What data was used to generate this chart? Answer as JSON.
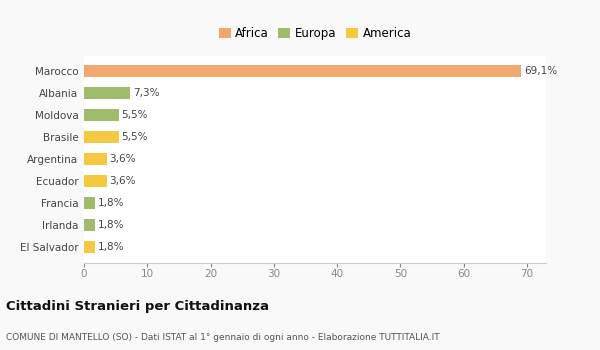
{
  "categories": [
    "El Salvador",
    "Irlanda",
    "Francia",
    "Ecuador",
    "Argentina",
    "Brasile",
    "Moldova",
    "Albania",
    "Marocco"
  ],
  "values": [
    1.8,
    1.8,
    1.8,
    3.6,
    3.6,
    5.5,
    5.5,
    7.3,
    69.1
  ],
  "labels": [
    "1,8%",
    "1,8%",
    "1,8%",
    "3,6%",
    "3,6%",
    "5,5%",
    "5,5%",
    "7,3%",
    "69,1%"
  ],
  "colors": [
    "#f5c842",
    "#a0bb6e",
    "#a0bb6e",
    "#f5c842",
    "#f5c842",
    "#f5c842",
    "#a0bb6e",
    "#a0bb6e",
    "#f0a870"
  ],
  "legend_labels": [
    "Africa",
    "Europa",
    "America"
  ],
  "legend_colors": [
    "#f0a870",
    "#a0bb6e",
    "#f5c842"
  ],
  "title": "Cittadini Stranieri per Cittadinanza",
  "subtitle": "COMUNE DI MANTELLO (SO) - Dati ISTAT al 1° gennaio di ogni anno - Elaborazione TUTTITALIA.IT",
  "xlim": [
    0,
    73
  ],
  "xticks": [
    0,
    10,
    20,
    30,
    40,
    50,
    60,
    70
  ],
  "background_color": "#f9f9f9",
  "grid_color": "#ffffff",
  "plot_area_color": "#ffffff"
}
